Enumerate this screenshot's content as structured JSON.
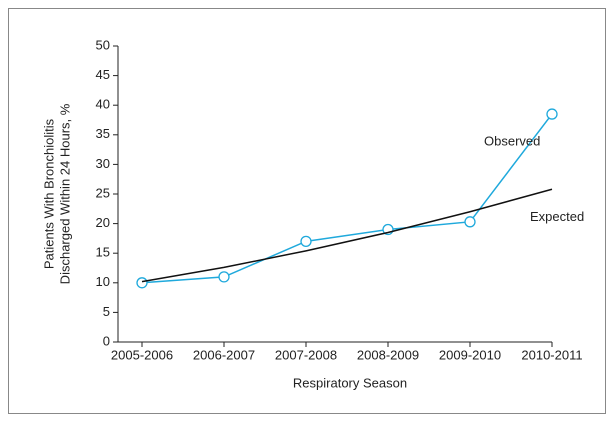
{
  "chart_data": {
    "type": "line",
    "x_label": "Respiratory Season",
    "y_label": [
      "Patients With Bronchiolitis",
      "Discharged Within 24 Hours, %"
    ],
    "categories": [
      "2005-2006",
      "2006-2007",
      "2007-2008",
      "2008-2009",
      "2009-2010",
      "2010-2011"
    ],
    "series": [
      {
        "name": "Observed",
        "color": "#1fa9dc",
        "markers": true,
        "values": [
          10,
          11,
          17,
          19,
          20.3,
          38.5
        ]
      },
      {
        "name": "Expected",
        "color": "#111111",
        "markers": false,
        "values": [
          10.2,
          12.6,
          15.4,
          18.5,
          22,
          25.8
        ]
      }
    ],
    "ylim": [
      0,
      50
    ],
    "yticks": [
      0,
      5,
      10,
      15,
      20,
      25,
      30,
      35,
      40,
      45,
      50
    ],
    "grid": false
  }
}
